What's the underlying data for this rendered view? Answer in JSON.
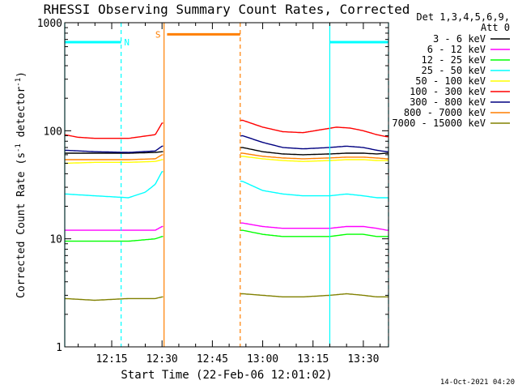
{
  "chart_data": {
    "type": "line",
    "title": "RHESSI Observing Summary Count Rates, Corrected",
    "xlabel": "Start Time (22-Feb-06 12:01:02)",
    "ylabel": "Corrected Count Rate (s⁻¹ detector⁻¹)",
    "ylabel_parts": [
      "Corrected Count Rate (s",
      "-1",
      " detector",
      "-1",
      ")"
    ],
    "y_scale": "log",
    "ylim": [
      1,
      1000
    ],
    "xlim_minutes_after_1200": [
      1.0,
      97.5
    ],
    "x_ticks": [
      {
        "label": "12:15",
        "value": 15
      },
      {
        "label": "12:30",
        "value": 30
      },
      {
        "label": "12:45",
        "value": 45
      },
      {
        "label": "13:00",
        "value": 60
      },
      {
        "label": "13:15",
        "value": 75
      },
      {
        "label": "13:30",
        "value": 90
      }
    ],
    "y_ticks": [
      {
        "label": "1",
        "value": 1
      },
      {
        "label": "10",
        "value": 10
      },
      {
        "label": "100",
        "value": 100
      },
      {
        "label": "1000",
        "value": 1000
      }
    ],
    "legend_header": [
      "Det 1,3,4,5,6,9,",
      "Att 0"
    ],
    "legend_position": "right",
    "grid": false,
    "footer_date": "14-Oct-2021 04:20",
    "gaps": [
      [
        30.6,
        53.3
      ]
    ],
    "flag_segments": [
      {
        "name": "night",
        "color": "#00ffff",
        "dash": false,
        "value": 660,
        "x": [
          1.0,
          17.8
        ]
      },
      {
        "name": "night",
        "color": "#00ffff",
        "dash": false,
        "value": 660,
        "x": [
          80.0,
          97.5
        ]
      },
      {
        "name": "saa",
        "color": "#ff7f00",
        "dash": false,
        "value": 780,
        "x": [
          31.5,
          53.3
        ]
      }
    ],
    "flag_letters": [
      {
        "text": "N",
        "color": "#00ffff",
        "value": 660,
        "x": 19.5
      },
      {
        "text": "S",
        "color": "#ff7f00",
        "value": 780,
        "x": 28.8
      }
    ],
    "vlines": [
      {
        "x": 1.0,
        "color": "#00ffff",
        "dash": false
      },
      {
        "x": 17.8,
        "color": "#00ffff",
        "dash": true
      },
      {
        "x": 30.6,
        "color": "#ff7f00",
        "dash": false
      },
      {
        "x": 53.3,
        "color": "#ff7f00",
        "dash": true
      },
      {
        "x": 80.0,
        "color": "#00ffff",
        "dash": false
      },
      {
        "x": 97.5,
        "color": "#00ffff",
        "dash": true
      }
    ],
    "series": [
      {
        "name": "3 - 6 keV",
        "color": "#000000",
        "x": [
          1,
          10,
          20,
          28,
          30,
          54,
          60,
          66,
          72,
          80,
          85,
          90,
          94,
          97
        ],
        "y": [
          62,
          62,
          62,
          63,
          64,
          70,
          64,
          61,
          60,
          61,
          62,
          62,
          61,
          62
        ]
      },
      {
        "name": "6 - 12 keV",
        "color": "#ff00ff",
        "x": [
          1,
          10,
          20,
          28,
          30,
          54,
          60,
          66,
          72,
          80,
          85,
          90,
          94,
          97
        ],
        "y": [
          12,
          12,
          12,
          12,
          13,
          14,
          13,
          12.5,
          12.5,
          12.5,
          13,
          13,
          12.5,
          12
        ]
      },
      {
        "name": "12 - 25 keV",
        "color": "#00ff00",
        "x": [
          1,
          10,
          20,
          28,
          30,
          54,
          60,
          66,
          72,
          80,
          85,
          90,
          94,
          97
        ],
        "y": [
          9.5,
          9.5,
          9.5,
          10,
          10.5,
          12,
          11,
          10.5,
          10.5,
          10.5,
          11,
          11,
          10.5,
          10.5
        ]
      },
      {
        "name": "25 - 50 keV",
        "color": "#00ffff",
        "x": [
          1,
          10,
          20,
          25,
          28,
          30,
          54,
          60,
          66,
          72,
          80,
          85,
          90,
          94,
          97
        ],
        "y": [
          26,
          25,
          24,
          27,
          32,
          42,
          34,
          28,
          26,
          25,
          25,
          26,
          25,
          24,
          24
        ]
      },
      {
        "name": "50 - 100 keV",
        "color": "#ffff00",
        "x": [
          1,
          10,
          20,
          28,
          30,
          54,
          60,
          66,
          72,
          80,
          85,
          90,
          94,
          97
        ],
        "y": [
          50,
          51,
          51,
          52,
          54,
          58,
          55,
          53,
          52,
          53,
          54,
          54,
          53,
          53
        ]
      },
      {
        "name": "100 - 300 keV",
        "color": "#ff0000",
        "x": [
          1,
          5,
          10,
          20,
          28,
          30,
          54,
          60,
          66,
          72,
          78,
          82,
          86,
          90,
          94,
          97
        ],
        "y": [
          92,
          87,
          85,
          85,
          92,
          118,
          125,
          108,
          98,
          96,
          103,
          108,
          106,
          100,
          92,
          88
        ]
      },
      {
        "name": "300 - 800 keV",
        "color": "#000080",
        "x": [
          1,
          10,
          20,
          28,
          30,
          54,
          60,
          66,
          72,
          80,
          85,
          90,
          94,
          97
        ],
        "y": [
          66,
          64,
          63,
          65,
          72,
          90,
          78,
          70,
          68,
          70,
          72,
          70,
          66,
          64
        ]
      },
      {
        "name": "800 - 7000 keV",
        "color": "#ff7f00",
        "x": [
          1,
          10,
          20,
          28,
          30,
          54,
          60,
          66,
          72,
          80,
          85,
          90,
          94,
          97
        ],
        "y": [
          54,
          54,
          54,
          55,
          60,
          62,
          58,
          56,
          55,
          56,
          57,
          57,
          56,
          55
        ]
      },
      {
        "name": "7000 - 15000 keV",
        "color": "#808000",
        "x": [
          1,
          10,
          20,
          28,
          30,
          54,
          60,
          66,
          72,
          80,
          85,
          90,
          94,
          97
        ],
        "y": [
          2.8,
          2.7,
          2.8,
          2.8,
          2.9,
          3.1,
          3.0,
          2.9,
          2.9,
          3.0,
          3.1,
          3.0,
          2.9,
          2.9
        ]
      }
    ]
  }
}
